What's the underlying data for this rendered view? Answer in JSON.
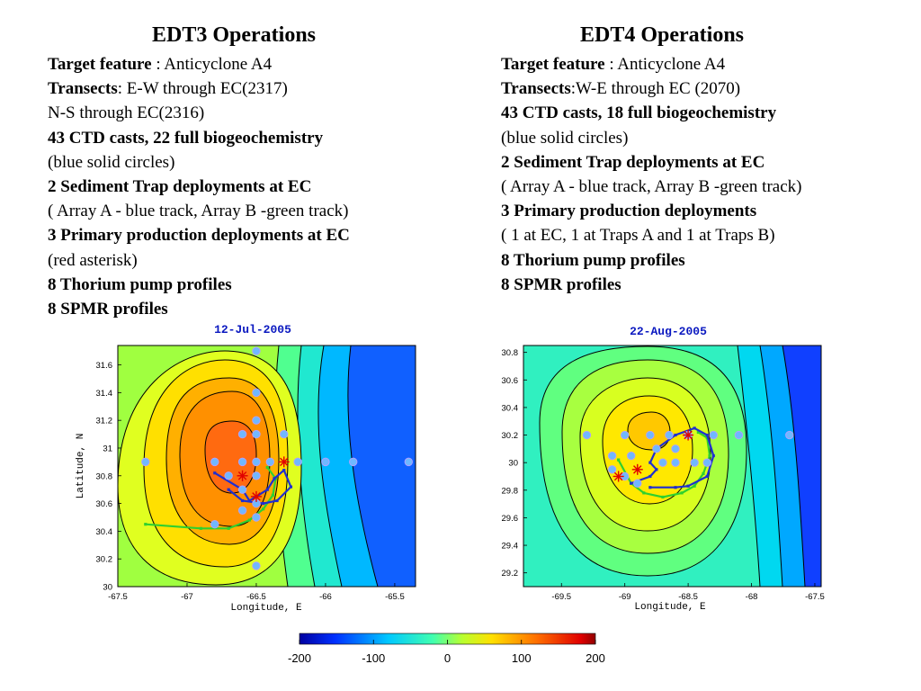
{
  "left": {
    "title": "EDT3 Operations",
    "target_label": "Target feature",
    "target_value": " : Anticyclone A4",
    "transects_label": "Transects",
    "transects_value": ": E-W through EC(2317)",
    "line3": "N-S through EC(2316)",
    "casts": "43 CTD casts, 22 full biogeochemistry",
    "casts_note": "(blue solid circles)",
    "traps": "2 Sediment Trap deployments at EC",
    "traps_note": "( Array A - blue track, Array B -green track)",
    "pp": "3 Primary production deployments at EC",
    "pp_note": "(red asterisk)",
    "thorium": "8 Thorium pump profiles",
    "spmr": "8 SPMR profiles"
  },
  "right": {
    "title": "EDT4 Operations",
    "target_label": "Target feature",
    "target_value": " : Anticyclone A4",
    "transects_label": "Transects",
    "transects_value": ":W-E through EC (2070)",
    "casts": "43 CTD casts, 18 full biogeochemistry",
    "casts_note": "(blue solid circles)",
    "traps": "2 Sediment Trap deployments at EC",
    "traps_note": "( Array A - blue track, Array B -green track)",
    "pp": "3 Primary production deployments",
    "pp_note": "( 1 at EC, 1 at Traps A and 1 at Traps B)",
    "thorium": "8 Thorium pump profiles",
    "spmr": "8 SPMR profiles"
  },
  "map1": {
    "date": "12-Jul-2005",
    "xlabel": "Longitude, E",
    "ylabel": "Latitude, N",
    "xticks": [
      "-67.5",
      "-67",
      "-66.5",
      "-66",
      "-65.5"
    ],
    "yticks": [
      "31.6",
      "31.4",
      "31.2",
      "31",
      "30.8",
      "30.6",
      "30.4",
      "30.2",
      "30"
    ],
    "xlim": [
      -67.5,
      -65.35
    ],
    "ylim": [
      30.0,
      31.74
    ],
    "stations": [
      [
        -66.5,
        31.7
      ],
      [
        -66.5,
        31.4
      ],
      [
        -66.5,
        31.2
      ],
      [
        -66.6,
        31.1
      ],
      [
        -66.5,
        31.1
      ],
      [
        -66.3,
        31.1
      ],
      [
        -67.3,
        30.9
      ],
      [
        -66.8,
        30.9
      ],
      [
        -66.6,
        30.9
      ],
      [
        -66.5,
        30.9
      ],
      [
        -66.4,
        30.9
      ],
      [
        -66.2,
        30.9
      ],
      [
        -66.0,
        30.9
      ],
      [
        -65.8,
        30.9
      ],
      [
        -65.4,
        30.9
      ],
      [
        -66.7,
        30.8
      ],
      [
        -66.5,
        30.8
      ],
      [
        -66.6,
        30.7
      ],
      [
        -66.5,
        30.6
      ],
      [
        -66.6,
        30.55
      ],
      [
        -66.5,
        30.5
      ],
      [
        -66.8,
        30.45
      ],
      [
        -66.5,
        30.15
      ]
    ],
    "primary_production": [
      [
        -66.5,
        30.65
      ],
      [
        -66.3,
        30.9
      ],
      [
        -66.6,
        30.8
      ]
    ],
    "track_a": [
      [
        -66.8,
        30.82
      ],
      [
        -66.6,
        30.7
      ],
      [
        -66.55,
        30.62
      ],
      [
        -66.42,
        30.7
      ],
      [
        -66.37,
        30.78
      ],
      [
        -66.3,
        30.84
      ],
      [
        -66.25,
        30.72
      ],
      [
        -66.35,
        30.62
      ],
      [
        -66.45,
        30.6
      ],
      [
        -66.6,
        30.62
      ],
      [
        -66.7,
        30.7
      ]
    ],
    "track_b": [
      [
        -67.3,
        30.45
      ],
      [
        -66.9,
        30.42
      ],
      [
        -66.7,
        30.42
      ],
      [
        -66.55,
        30.48
      ],
      [
        -66.45,
        30.56
      ],
      [
        -66.38,
        30.66
      ],
      [
        -66.36,
        30.78
      ],
      [
        -66.42,
        30.86
      ]
    ]
  },
  "map2": {
    "date": "22-Aug-2005",
    "xlabel": "Longitude, E",
    "yticks": [
      "30.8",
      "30.6",
      "30.4",
      "30.2",
      "30",
      "29.8",
      "29.6",
      "29.4",
      "29.2"
    ],
    "xticks": [
      "-69.5",
      "-69",
      "-68.5",
      "-68",
      "-67.5"
    ],
    "xlim": [
      -69.8,
      -67.45
    ],
    "ylim": [
      29.1,
      30.85
    ],
    "stations": [
      [
        -69.3,
        30.2
      ],
      [
        -69.0,
        30.2
      ],
      [
        -68.8,
        30.2
      ],
      [
        -68.65,
        30.2
      ],
      [
        -68.5,
        30.2
      ],
      [
        -68.3,
        30.2
      ],
      [
        -68.1,
        30.2
      ],
      [
        -67.7,
        30.2
      ],
      [
        -69.1,
        30.05
      ],
      [
        -68.95,
        30.05
      ],
      [
        -68.75,
        30.1
      ],
      [
        -68.6,
        30.1
      ],
      [
        -69.1,
        29.95
      ],
      [
        -69.0,
        29.9
      ],
      [
        -68.9,
        29.85
      ],
      [
        -68.7,
        30.0
      ],
      [
        -68.6,
        30.0
      ],
      [
        -68.45,
        30.0
      ],
      [
        -68.35,
        30.0
      ]
    ],
    "primary_production": [
      [
        -69.05,
        29.9
      ],
      [
        -68.9,
        29.95
      ],
      [
        -68.5,
        30.2
      ]
    ],
    "track_a": [
      [
        -68.95,
        29.85
      ],
      [
        -68.8,
        29.9
      ],
      [
        -68.75,
        29.95
      ],
      [
        -68.8,
        30.0
      ],
      [
        -68.75,
        30.1
      ],
      [
        -68.6,
        30.2
      ],
      [
        -68.45,
        30.25
      ],
      [
        -68.35,
        30.2
      ],
      [
        -68.3,
        30.05
      ],
      [
        -68.35,
        29.9
      ],
      [
        -68.5,
        29.83
      ],
      [
        -68.6,
        29.82
      ],
      [
        -68.8,
        29.82
      ]
    ],
    "track_b": [
      [
        -69.05,
        30.02
      ],
      [
        -68.95,
        29.85
      ],
      [
        -68.85,
        29.78
      ],
      [
        -68.7,
        29.75
      ],
      [
        -68.55,
        29.78
      ],
      [
        -68.45,
        29.83
      ],
      [
        -68.38,
        29.92
      ],
      [
        -68.33,
        30.05
      ],
      [
        -68.35,
        30.18
      ],
      [
        -68.42,
        30.22
      ]
    ]
  },
  "colorbar": {
    "ticks": [
      "-200",
      "-100",
      "0",
      "100",
      "200"
    ],
    "min": -200,
    "max": 200
  },
  "colors": {
    "track_a": "#1f2fd0",
    "track_b": "#2fd02f",
    "station": "#6fb8ff",
    "station_edge": "#b0a0ff",
    "asterisk": "#e00000",
    "date": "#0a18c0"
  }
}
